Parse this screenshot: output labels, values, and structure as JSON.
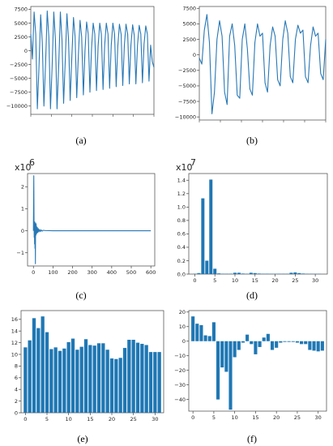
{
  "chart_data": [
    {
      "panel": "(a)",
      "type": "line",
      "ylim": [
        -11500,
        8000
      ],
      "yticks": [
        "7500",
        "5000",
        "2500",
        "0",
        "−2500",
        "−5000",
        "−7500",
        "−10000"
      ],
      "ytick_values": [
        7500,
        5000,
        2500,
        0,
        -2500,
        -5000,
        -7500,
        -10000
      ],
      "xlim": [
        0,
        150
      ],
      "series": [
        {
          "x": [
            0,
            2,
            4,
            6,
            8,
            10,
            12,
            14,
            16,
            18,
            20,
            22,
            24,
            26,
            28,
            30,
            32,
            34,
            36,
            38,
            40,
            42,
            44,
            46,
            48,
            50,
            52,
            54,
            56,
            58,
            60,
            62,
            64,
            66,
            68,
            70,
            72,
            74,
            76,
            78,
            80,
            82,
            84,
            86,
            88,
            90,
            92,
            94,
            96,
            98,
            100,
            102,
            104,
            106,
            108,
            110,
            112,
            114,
            116,
            118,
            120,
            122,
            124,
            126,
            128,
            130,
            132,
            134,
            136,
            138,
            140,
            142,
            144,
            146,
            148,
            150
          ],
          "y": [
            3000,
            -1500,
            7000,
            3000,
            -10500,
            -3000,
            6500,
            1500,
            -10000,
            -2500,
            7200,
            2500,
            -10500,
            -3000,
            7000,
            2000,
            -10500,
            -2500,
            7000,
            2000,
            -9500,
            -1500,
            6700,
            2000,
            -9000,
            -1000,
            6000,
            2500,
            -8500,
            -500,
            5500,
            2500,
            -8000,
            0,
            5200,
            3000,
            -7500,
            500,
            5000,
            3000,
            -7200,
            800,
            5000,
            3000,
            -7000,
            1000,
            5000,
            3000,
            -6800,
            1000,
            5000,
            3000,
            -6500,
            800,
            4800,
            3000,
            -6300,
            1000,
            4800,
            3000,
            -6000,
            1000,
            4700,
            2800,
            -6000,
            1000,
            4600,
            3000,
            -5800,
            1200,
            4500,
            3000,
            -5500,
            1000,
            -2000,
            -3000
          ]
        }
      ]
    },
    {
      "panel": "(b)",
      "type": "line",
      "ylim": [
        -10500,
        7800
      ],
      "yticks": [
        "7500",
        "5000",
        "2500",
        "0",
        "−2500",
        "−5000",
        "−7500",
        "−10000"
      ],
      "ytick_values": [
        7500,
        5000,
        2500,
        0,
        -2500,
        -5000,
        -7500,
        -10000
      ],
      "xlim": [
        0,
        100
      ],
      "series": [
        {
          "x": [
            0,
            2,
            4,
            6,
            8,
            10,
            12,
            14,
            16,
            18,
            20,
            22,
            24,
            26,
            28,
            30,
            32,
            34,
            36,
            38,
            40,
            42,
            44,
            46,
            48,
            50,
            52,
            54,
            56,
            58,
            60,
            62,
            64,
            66,
            68,
            70,
            72,
            74,
            76,
            78,
            80,
            82,
            84,
            86,
            88,
            90,
            92,
            94,
            96,
            98,
            100
          ],
          "y": [
            -500,
            -1500,
            4000,
            6500,
            2000,
            -9500,
            -6000,
            2500,
            5500,
            3000,
            -6000,
            -8000,
            3000,
            5000,
            1500,
            -6500,
            -7000,
            2500,
            5000,
            1000,
            -5500,
            -6500,
            2000,
            5000,
            3000,
            3500,
            -4500,
            -6000,
            1500,
            4500,
            3000,
            -4000,
            -5000,
            2500,
            5500,
            3500,
            -3500,
            -4500,
            2500,
            4800,
            3500,
            4000,
            -3500,
            -4500,
            1500,
            4500,
            3000,
            3500,
            -3000,
            -4000,
            2500
          ]
        }
      ]
    },
    {
      "panel": "(c)",
      "type": "line",
      "exponent": "x10",
      "exponent_power": "6",
      "ylim": [
        -1.6,
        2.6
      ],
      "yticks": [
        "2",
        "1",
        "0",
        "−1"
      ],
      "ytick_values": [
        2,
        1,
        0,
        -1
      ],
      "xlim": [
        -30,
        620
      ],
      "xticks": [
        "0",
        "100",
        "200",
        "300",
        "400",
        "500",
        "600"
      ],
      "xtick_values": [
        0,
        100,
        200,
        300,
        400,
        500,
        600
      ],
      "series": [
        {
          "x": [
            0,
            2,
            3,
            4,
            5,
            6,
            7,
            8,
            9,
            10,
            11,
            12,
            13,
            14,
            15,
            16,
            18,
            20,
            22,
            25,
            28,
            32,
            36,
            40,
            45,
            50,
            60,
            80,
            100,
            150,
            200,
            300,
            400,
            500,
            600
          ],
          "y": [
            0,
            2.5,
            0.5,
            -0.3,
            0.2,
            -0.6,
            0.4,
            -0.8,
            0.3,
            -1.5,
            0.1,
            0.35,
            -0.2,
            0.3,
            -0.15,
            0.2,
            -0.1,
            0.15,
            -0.08,
            0.1,
            -0.05,
            0.06,
            -0.04,
            0.04,
            -0.02,
            0.02,
            0.01,
            0.005,
            0,
            0,
            0,
            0,
            0,
            0,
            0
          ]
        }
      ]
    },
    {
      "panel": "(d)",
      "type": "bar",
      "exponent": "x10",
      "exponent_power": "7",
      "ylim": [
        0,
        1.5
      ],
      "yticks": [
        "1.4",
        "1.2",
        "1.0",
        "0.8",
        "0.6",
        "0.4",
        "0.2",
        "0.0"
      ],
      "ytick_values": [
        1.4,
        1.2,
        1.0,
        0.8,
        0.6,
        0.4,
        0.2,
        0.0
      ],
      "xlim": [
        -1.5,
        33
      ],
      "xticks": [
        "0",
        "5",
        "10",
        "15",
        "20",
        "25",
        "30"
      ],
      "xtick_values": [
        0,
        5,
        10,
        15,
        20,
        25,
        30
      ],
      "categories": [
        0,
        1,
        2,
        3,
        4,
        5,
        6,
        7,
        8,
        9,
        10,
        11,
        12,
        13,
        14,
        15,
        16,
        17,
        18,
        19,
        20,
        21,
        22,
        23,
        24,
        25,
        26,
        27,
        28,
        29,
        30,
        31
      ],
      "values": [
        0.005,
        0.015,
        1.13,
        0.2,
        1.41,
        0.08,
        0.01,
        0.005,
        0.004,
        0.006,
        0.02,
        0.02,
        0.008,
        0.004,
        0.02,
        0.015,
        0.008,
        0.005,
        0.006,
        0.004,
        0.004,
        0.005,
        0.004,
        0.004,
        0.02,
        0.025,
        0.015,
        0.008,
        0.004,
        0.004,
        0.003,
        0.003
      ]
    },
    {
      "panel": "(e)",
      "type": "bar",
      "ylim": [
        0,
        17.5
      ],
      "yticks": [
        "16",
        "14",
        "12",
        "10",
        "8",
        "6",
        "4",
        "2",
        "0"
      ],
      "ytick_values": [
        16,
        14,
        12,
        10,
        8,
        6,
        4,
        2,
        0
      ],
      "xlim": [
        -1,
        32
      ],
      "xticks": [
        "0",
        "5",
        "10",
        "15",
        "20",
        "25",
        "30"
      ],
      "xtick_values": [
        0,
        5,
        10,
        15,
        20,
        25,
        30
      ],
      "categories": [
        0,
        1,
        2,
        3,
        4,
        5,
        6,
        7,
        8,
        9,
        10,
        11,
        12,
        13,
        14,
        15,
        16,
        17,
        18,
        19,
        20,
        21,
        22,
        23,
        24,
        25,
        26,
        27,
        28,
        29,
        30,
        31
      ],
      "values": [
        11.2,
        12.4,
        16.2,
        14.5,
        16.5,
        13.8,
        10.9,
        11.2,
        10.6,
        11.0,
        12.1,
        12.7,
        10.8,
        11.3,
        12.6,
        11.6,
        11.5,
        11.9,
        11.9,
        10.8,
        9.3,
        9.2,
        9.4,
        11.1,
        12.5,
        12.5,
        12.0,
        11.8,
        11.6,
        10.4,
        10.4,
        10.4
      ]
    },
    {
      "panel": "(f)",
      "type": "bar",
      "ylim": [
        -48,
        21
      ],
      "yticks": [
        "20",
        "10",
        "0",
        "−10",
        "−20",
        "−30",
        "−40"
      ],
      "ytick_values": [
        20,
        10,
        0,
        -10,
        -20,
        -30,
        -40
      ],
      "xlim": [
        -1,
        32
      ],
      "xticks": [
        "0",
        "5",
        "10",
        "15",
        "20",
        "25",
        "30"
      ],
      "xtick_values": [
        0,
        5,
        10,
        15,
        20,
        25,
        30
      ],
      "categories": [
        0,
        1,
        2,
        3,
        4,
        5,
        6,
        7,
        8,
        9,
        10,
        11,
        12,
        13,
        14,
        15,
        16,
        17,
        18,
        19,
        20,
        21,
        22,
        23,
        24,
        25,
        26,
        27,
        28,
        29,
        30,
        31
      ],
      "values": [
        17,
        12,
        11,
        4,
        3.5,
        13,
        -40,
        -18,
        -21,
        -47,
        -11,
        -6,
        -1,
        4.5,
        -2,
        -9,
        -4,
        2.5,
        5,
        -6,
        -4.5,
        -1,
        -0.5,
        -0.5,
        -0.5,
        -1,
        -2,
        -2,
        -6,
        -6.5,
        -7,
        -6.5
      ]
    }
  ],
  "labels": {
    "a": "(a)",
    "b": "(b)",
    "c": "(c)",
    "d": "(d)",
    "e": "(e)",
    "f": "(f)"
  },
  "colors": {
    "series": "#2878b5",
    "bar": "#1f77b4",
    "axis": "#444444"
  }
}
